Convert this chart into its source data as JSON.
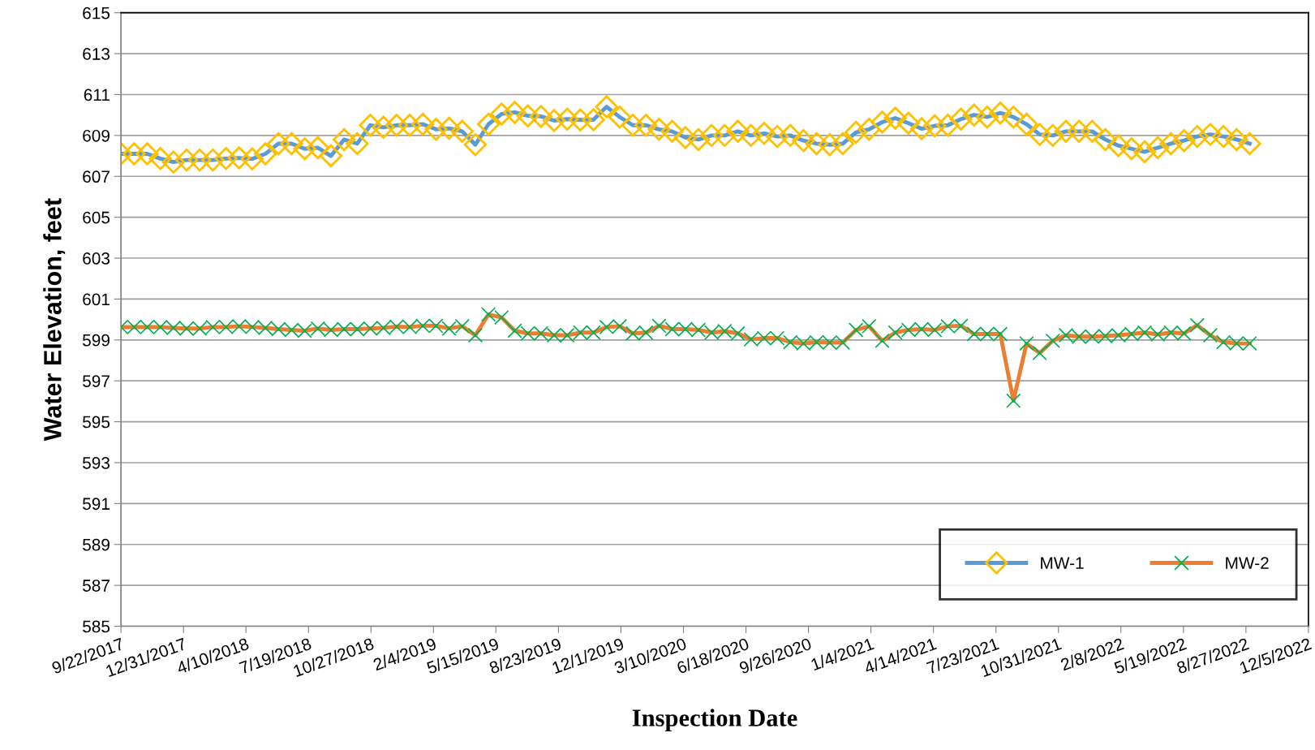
{
  "chart_data": {
    "type": "line",
    "xlabel": "Inspection Date",
    "ylabel": "Water Elevation, feet",
    "x": [
      "2017-09-22",
      "2017-10-13",
      "2017-11-03",
      "2017-11-24",
      "2017-12-15",
      "2018-01-05",
      "2018-01-26",
      "2018-02-16",
      "2018-03-09",
      "2018-03-30",
      "2018-04-20",
      "2018-05-11",
      "2018-06-01",
      "2018-06-22",
      "2018-07-13",
      "2018-08-03",
      "2018-08-24",
      "2018-09-14",
      "2018-10-05",
      "2018-10-26",
      "2018-11-16",
      "2018-12-07",
      "2018-12-28",
      "2019-01-18",
      "2019-02-08",
      "2019-03-01",
      "2019-03-22",
      "2019-04-12",
      "2019-05-03",
      "2019-05-24",
      "2019-06-14",
      "2019-07-05",
      "2019-07-26",
      "2019-08-16",
      "2019-09-06",
      "2019-09-27",
      "2019-10-18",
      "2019-11-08",
      "2019-11-29",
      "2019-12-20",
      "2020-01-10",
      "2020-01-31",
      "2020-02-21",
      "2020-03-13",
      "2020-04-03",
      "2020-04-24",
      "2020-05-15",
      "2020-06-05",
      "2020-06-26",
      "2020-07-17",
      "2020-08-07",
      "2020-08-28",
      "2020-09-18",
      "2020-10-09",
      "2020-10-30",
      "2020-11-20",
      "2020-12-11",
      "2021-01-01",
      "2021-01-22",
      "2021-02-12",
      "2021-03-05",
      "2021-03-26",
      "2021-04-16",
      "2021-05-07",
      "2021-05-28",
      "2021-06-18",
      "2021-07-09",
      "2021-07-30",
      "2021-08-20",
      "2021-09-10",
      "2021-10-01",
      "2021-10-22",
      "2021-11-12",
      "2021-12-03",
      "2021-12-24",
      "2022-01-14",
      "2022-02-04",
      "2022-02-25",
      "2022-03-18",
      "2022-04-08",
      "2022-04-29",
      "2022-05-20",
      "2022-06-10",
      "2022-07-01",
      "2022-07-22",
      "2022-08-12",
      "2022-09-02"
    ],
    "series": [
      {
        "name": "MW-1",
        "color": "#5b9bd5",
        "marker": "diamond",
        "values": [
          608.1,
          608.1,
          608.1,
          607.87,
          607.7,
          607.8,
          607.8,
          607.8,
          607.87,
          607.9,
          607.85,
          608.1,
          608.6,
          608.6,
          608.35,
          608.4,
          608.0,
          608.8,
          608.6,
          609.5,
          609.4,
          609.5,
          609.5,
          609.55,
          609.3,
          609.35,
          609.2,
          608.55,
          609.55,
          610.05,
          610.13,
          609.96,
          609.93,
          609.73,
          609.8,
          609.76,
          609.77,
          610.4,
          609.9,
          609.5,
          609.5,
          609.3,
          609.2,
          608.9,
          608.8,
          609.0,
          609.0,
          609.2,
          609.0,
          609.1,
          608.95,
          609.0,
          608.75,
          608.6,
          608.55,
          608.6,
          609.15,
          609.3,
          609.65,
          609.85,
          609.6,
          609.33,
          609.47,
          609.5,
          609.8,
          610.0,
          609.9,
          610.1,
          609.9,
          609.55,
          609.05,
          609.0,
          609.2,
          609.2,
          609.2,
          608.8,
          608.5,
          608.35,
          608.2,
          608.4,
          608.6,
          608.75,
          608.95,
          609.05,
          608.95,
          608.8,
          608.6
        ]
      },
      {
        "name": "MW-2",
        "color": "#ed7d31",
        "marker": "cross",
        "values": [
          599.63,
          599.63,
          599.63,
          599.63,
          599.59,
          599.56,
          599.56,
          599.63,
          599.63,
          599.67,
          599.63,
          599.59,
          599.53,
          599.49,
          599.45,
          599.56,
          599.49,
          599.53,
          599.53,
          599.56,
          599.59,
          599.65,
          599.63,
          599.69,
          599.69,
          599.56,
          599.67,
          599.23,
          600.25,
          600.1,
          599.45,
          599.32,
          599.32,
          599.23,
          599.23,
          599.36,
          599.36,
          599.63,
          599.67,
          599.32,
          599.36,
          599.69,
          599.53,
          599.53,
          599.49,
          599.36,
          599.43,
          599.32,
          599.03,
          599.09,
          599.09,
          598.89,
          598.83,
          598.89,
          598.87,
          598.87,
          599.49,
          599.67,
          598.96,
          599.36,
          599.49,
          599.53,
          599.49,
          599.67,
          599.69,
          599.29,
          599.29,
          599.29,
          596.03,
          598.83,
          598.36,
          598.96,
          599.23,
          599.16,
          599.16,
          599.19,
          599.23,
          599.29,
          599.36,
          599.27,
          599.36,
          599.32,
          599.72,
          599.23,
          598.89,
          598.83,
          598.83
        ]
      }
    ],
    "xlim": [
      "2017-09-22",
      "2022-12-05"
    ],
    "xticks": [
      {
        "value": "2017-09-22",
        "label": "9/22/2017"
      },
      {
        "value": "2017-12-31",
        "label": "12/31/2017"
      },
      {
        "value": "2018-04-10",
        "label": "4/10/2018"
      },
      {
        "value": "2018-07-19",
        "label": "7/19/2018"
      },
      {
        "value": "2018-10-27",
        "label": "10/27/2018"
      },
      {
        "value": "2019-02-04",
        "label": "2/4/2019"
      },
      {
        "value": "2019-05-15",
        "label": "5/15/2019"
      },
      {
        "value": "2019-08-23",
        "label": "8/23/2019"
      },
      {
        "value": "2019-12-01",
        "label": "12/1/2019"
      },
      {
        "value": "2020-03-10",
        "label": "3/10/2020"
      },
      {
        "value": "2020-06-18",
        "label": "6/18/2020"
      },
      {
        "value": "2020-09-26",
        "label": "9/26/2020"
      },
      {
        "value": "2021-01-04",
        "label": "1/4/2021"
      },
      {
        "value": "2021-04-14",
        "label": "4/14/2021"
      },
      {
        "value": "2021-07-23",
        "label": "7/23/2021"
      },
      {
        "value": "2021-10-31",
        "label": "10/31/2021"
      },
      {
        "value": "2022-02-08",
        "label": "2/8/2022"
      },
      {
        "value": "2022-05-19",
        "label": "5/19/2022"
      },
      {
        "value": "2022-08-27",
        "label": "8/27/2022"
      },
      {
        "value": "2022-12-05",
        "label": "12/5/2022"
      }
    ],
    "ylim": [
      585,
      615
    ],
    "yticks": [
      585,
      587,
      589,
      591,
      593,
      595,
      597,
      599,
      601,
      603,
      605,
      607,
      609,
      611,
      613,
      615
    ],
    "grid": "y",
    "legend": "bottom right",
    "line_style": "solid"
  }
}
